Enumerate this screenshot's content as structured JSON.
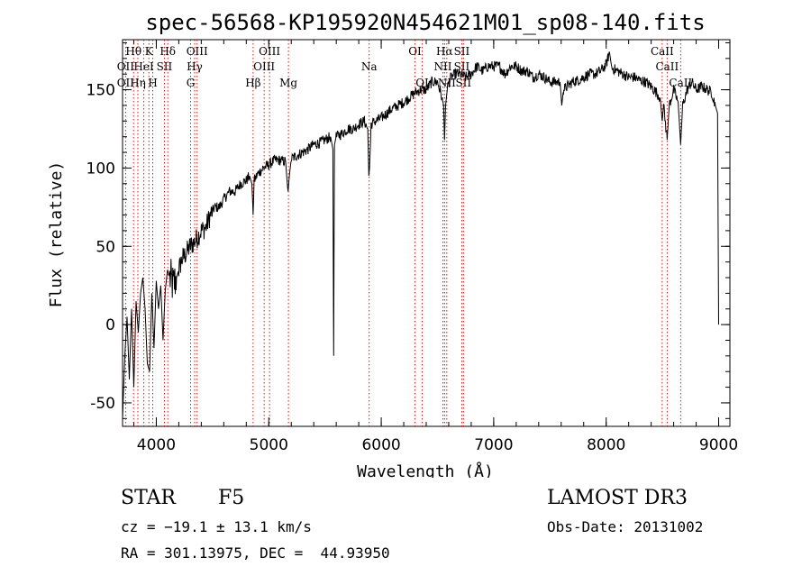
{
  "chart_data": {
    "type": "line",
    "title": "spec-56568-KP195920N454621M01_sp08-140.fits",
    "xlabel": "Wavelength (Å)",
    "ylabel": "Flux (relative)",
    "xlim": [
      3700,
      9100
    ],
    "ylim": [
      -65,
      182
    ],
    "xticks": [
      4000,
      5000,
      6000,
      7000,
      8000,
      9000
    ],
    "yticks": [
      -50,
      0,
      50,
      100,
      150
    ],
    "x_minor_step": 200,
    "y_minor_step": 10,
    "line_color": "#000000",
    "marker_color": "#cc0000",
    "series": [
      {
        "name": "flux",
        "x": [
          3700,
          3720,
          3740,
          3760,
          3780,
          3800,
          3820,
          3840,
          3860,
          3880,
          3900,
          3920,
          3940,
          3960,
          3980,
          4000,
          4020,
          4040,
          4060,
          4080,
          4100,
          4120,
          4150,
          4180,
          4200,
          4230,
          4260,
          4300,
          4330,
          4360,
          4400,
          4440,
          4480,
          4520,
          4560,
          4600,
          4650,
          4700,
          4750,
          4800,
          4830,
          4850,
          4861,
          4870,
          4900,
          4950,
          5000,
          5050,
          5100,
          5150,
          5167,
          5172,
          5183,
          5200,
          5250,
          5300,
          5350,
          5400,
          5450,
          5500,
          5550,
          5570,
          5577,
          5584,
          5600,
          5650,
          5700,
          5750,
          5800,
          5850,
          5880,
          5890,
          5896,
          5910,
          5950,
          6000,
          6050,
          6100,
          6150,
          6200,
          6250,
          6300,
          6350,
          6400,
          6450,
          6500,
          6540,
          6555,
          6563,
          6572,
          6590,
          6620,
          6660,
          6700,
          6750,
          6800,
          6850,
          6900,
          6950,
          7000,
          7050,
          7100,
          7150,
          7200,
          7250,
          7300,
          7350,
          7400,
          7450,
          7500,
          7550,
          7590,
          7605,
          7620,
          7650,
          7700,
          7750,
          7800,
          7850,
          7900,
          7950,
          8000,
          8030,
          8050,
          8100,
          8150,
          8200,
          8250,
          8300,
          8350,
          8400,
          8450,
          8480,
          8498,
          8510,
          8542,
          8560,
          8600,
          8640,
          8662,
          8680,
          8720,
          8760,
          8800,
          8850,
          8900,
          8940,
          8970,
          8990,
          9000
        ],
        "y": [
          -60,
          -20,
          5,
          -35,
          10,
          -40,
          15,
          -5,
          20,
          30,
          10,
          -25,
          -30,
          20,
          -15,
          28,
          10,
          25,
          -10,
          22,
          35,
          30,
          25,
          30,
          35,
          42,
          45,
          50,
          52,
          55,
          60,
          62,
          70,
          75,
          75,
          80,
          85,
          85,
          90,
          92,
          95,
          90,
          70,
          92,
          96,
          100,
          102,
          105,
          105,
          104,
          88,
          85,
          95,
          106,
          108,
          110,
          112,
          115,
          116,
          118,
          120,
          112,
          -20,
          115,
          120,
          122,
          125,
          125,
          128,
          130,
          125,
          95,
          100,
          128,
          130,
          132,
          135,
          138,
          140,
          142,
          145,
          148,
          150,
          150,
          155,
          155,
          145,
          140,
          118,
          140,
          152,
          158,
          160,
          160,
          158,
          160,
          165,
          162,
          165,
          165,
          165,
          160,
          165,
          165,
          162,
          162,
          158,
          160,
          158,
          155,
          155,
          155,
          140,
          150,
          152,
          155,
          156,
          158,
          160,
          160,
          162,
          166,
          174,
          164,
          162,
          160,
          158,
          158,
          156,
          155,
          152,
          148,
          145,
          130,
          140,
          118,
          140,
          150,
          142,
          115,
          140,
          150,
          155,
          150,
          152,
          150,
          148,
          140,
          135,
          0
        ]
      }
    ],
    "line_markers": [
      {
        "label": "Hθ",
        "x": 3798,
        "row": 0
      },
      {
        "label": "OII",
        "x": 3727,
        "row": 1
      },
      {
        "label": "OII",
        "x": 3727,
        "row": 2
      },
      {
        "label": "Hη",
        "x": 3836,
        "row": 2
      },
      {
        "label": "HeI",
        "x": 3889,
        "row": 1
      },
      {
        "label": "K",
        "x": 3934,
        "row": 0
      },
      {
        "label": "H",
        "x": 3969,
        "row": 2
      },
      {
        "label": "SII",
        "x": 4072,
        "row": 1
      },
      {
        "label": "Hδ",
        "x": 4102,
        "row": 0
      },
      {
        "label": "G",
        "x": 4305,
        "row": 2
      },
      {
        "label": "Hγ",
        "x": 4341,
        "row": 1
      },
      {
        "label": "OIII",
        "x": 4363,
        "row": 0
      },
      {
        "label": "Hβ",
        "x": 4861,
        "row": 2
      },
      {
        "label": "OIII",
        "x": 4959,
        "row": 1
      },
      {
        "label": "OIII",
        "x": 5007,
        "row": 0
      },
      {
        "label": "Mg",
        "x": 5175,
        "row": 2
      },
      {
        "label": "Na",
        "x": 5893,
        "row": 1
      },
      {
        "label": "OI",
        "x": 6300,
        "row": 0
      },
      {
        "label": "OI",
        "x": 6364,
        "row": 2
      },
      {
        "label": "NII",
        "x": 6548,
        "row": 1
      },
      {
        "label": "Hα",
        "x": 6563,
        "row": 0
      },
      {
        "label": "NII",
        "x": 6583,
        "row": 2
      },
      {
        "label": "SII",
        "x": 6716,
        "row": 0
      },
      {
        "label": "SII",
        "x": 6716,
        "row": 1
      },
      {
        "label": "SII",
        "x": 6731,
        "row": 2
      },
      {
        "label": "CaII",
        "x": 8498,
        "row": 0
      },
      {
        "label": "CaII",
        "x": 8542,
        "row": 1
      },
      {
        "label": "CaII",
        "x": 8662,
        "row": 2
      }
    ]
  },
  "info": {
    "object_class": "STAR",
    "subclass": "F5",
    "survey": "LAMOST DR3",
    "cz": "cz = −19.1 ± 13.1 km/s",
    "obs_date": "Obs-Date: 20131002",
    "coords": "RA = 301.13975, DEC =  44.93950"
  }
}
